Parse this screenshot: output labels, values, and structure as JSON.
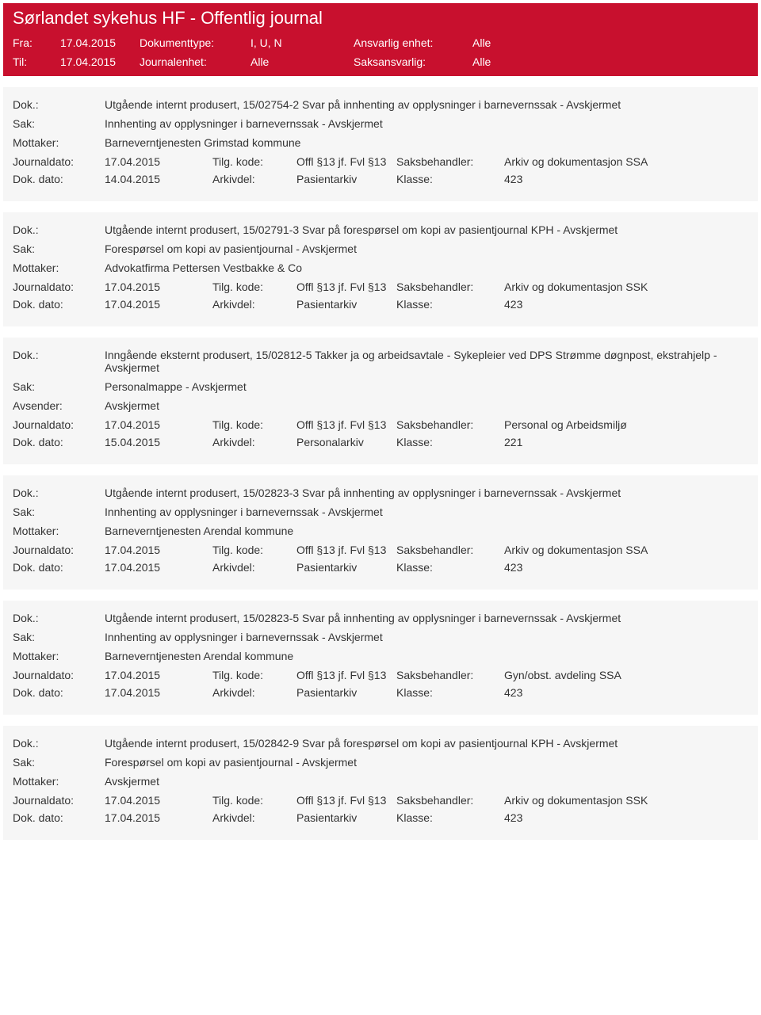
{
  "colors": {
    "header_bg": "#c8102e",
    "header_fg": "#ffffff",
    "entry_bg": "#f6f6f6",
    "page_bg": "#ffffff",
    "text": "#333333"
  },
  "header": {
    "title": "Sørlandet sykehus HF - Offentlig journal",
    "fra_label": "Fra:",
    "fra_value": "17.04.2015",
    "til_label": "Til:",
    "til_value": "17.04.2015",
    "doktype_label": "Dokumenttype:",
    "doktype_value": "I, U, N",
    "journalenhet_label": "Journalenhet:",
    "journalenhet_value": "Alle",
    "ansvarlig_label": "Ansvarlig enhet:",
    "ansvarlig_value": "Alle",
    "saksansvarlig_label": "Saksansvarlig:",
    "saksansvarlig_value": "Alle"
  },
  "labels": {
    "dok": "Dok.:",
    "sak": "Sak:",
    "mottaker": "Mottaker:",
    "avsender": "Avsender:",
    "journaldato": "Journaldato:",
    "dokdato": "Dok. dato:",
    "tilgkode": "Tilg. kode:",
    "arkivdel": "Arkivdel:",
    "saksbehandler": "Saksbehandler:",
    "klasse": "Klasse:"
  },
  "entries": [
    {
      "dok": "Utgående internt produsert, 15/02754-2 Svar på innhenting av opplysninger i barnevernssak - Avskjermet",
      "sak": "Innhenting av opplysninger i barnevernssak - Avskjermet",
      "party_label": "Mottaker:",
      "party": "Barneverntjenesten Grimstad kommune",
      "journaldato": "17.04.2015",
      "tilgkode": "Offl §13 jf. Fvl §13",
      "saksbehandler": "Arkiv og dokumentasjon SSA",
      "dokdato": "14.04.2015",
      "arkivdel": "Pasientarkiv",
      "klasse": "423"
    },
    {
      "dok": "Utgående internt produsert, 15/02791-3 Svar på forespørsel om kopi av pasientjournal KPH - Avskjermet",
      "sak": "Forespørsel om kopi av pasientjournal - Avskjermet",
      "party_label": "Mottaker:",
      "party": "Advokatfirma Pettersen Vestbakke & Co",
      "journaldato": "17.04.2015",
      "tilgkode": "Offl §13 jf. Fvl §13",
      "saksbehandler": "Arkiv og dokumentasjon SSK",
      "dokdato": "17.04.2015",
      "arkivdel": "Pasientarkiv",
      "klasse": "423"
    },
    {
      "dok": "Inngående eksternt produsert, 15/02812-5 Takker ja og arbeidsavtale - Sykepleier ved DPS Strømme døgnpost, ekstrahjelp - Avskjermet",
      "sak": "Personalmappe - Avskjermet",
      "party_label": "Avsender:",
      "party": "Avskjermet",
      "journaldato": "17.04.2015",
      "tilgkode": "Offl §13 jf. Fvl §13",
      "saksbehandler": "Personal og Arbeidsmiljø",
      "dokdato": "15.04.2015",
      "arkivdel": "Personalarkiv",
      "klasse": "221"
    },
    {
      "dok": "Utgående internt produsert, 15/02823-3 Svar på innhenting av opplysninger i barnevernssak - Avskjermet",
      "sak": "Innhenting av opplysninger i barnevernssak - Avskjermet",
      "party_label": "Mottaker:",
      "party": "Barneverntjenesten Arendal kommune",
      "journaldato": "17.04.2015",
      "tilgkode": "Offl §13 jf. Fvl §13",
      "saksbehandler": "Arkiv og dokumentasjon SSA",
      "dokdato": "17.04.2015",
      "arkivdel": "Pasientarkiv",
      "klasse": "423"
    },
    {
      "dok": "Utgående internt produsert, 15/02823-5 Svar på innhenting av opplysninger i barnevernssak - Avskjermet",
      "sak": "Innhenting av opplysninger i barnevernssak - Avskjermet",
      "party_label": "Mottaker:",
      "party": "Barneverntjenesten Arendal kommune",
      "journaldato": "17.04.2015",
      "tilgkode": "Offl §13 jf. Fvl §13",
      "saksbehandler": "Gyn/obst. avdeling SSA",
      "dokdato": "17.04.2015",
      "arkivdel": "Pasientarkiv",
      "klasse": "423"
    },
    {
      "dok": "Utgående internt produsert, 15/02842-9 Svar på forespørsel om kopi av pasientjournal KPH - Avskjermet",
      "sak": "Forespørsel om kopi av pasientjournal - Avskjermet",
      "party_label": "Mottaker:",
      "party": "Avskjermet",
      "journaldato": "17.04.2015",
      "tilgkode": "Offl §13 jf. Fvl §13",
      "saksbehandler": "Arkiv og dokumentasjon SSK",
      "dokdato": "17.04.2015",
      "arkivdel": "Pasientarkiv",
      "klasse": "423"
    }
  ]
}
